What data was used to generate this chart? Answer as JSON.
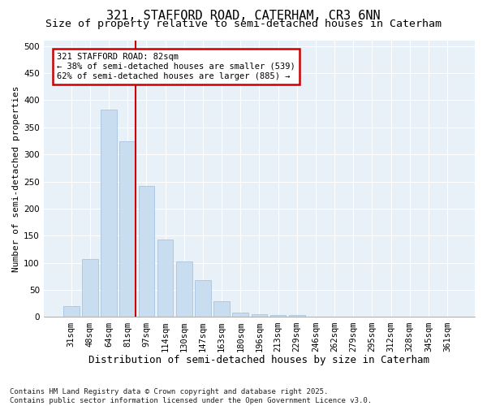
{
  "title1": "321, STAFFORD ROAD, CATERHAM, CR3 6NN",
  "title2": "Size of property relative to semi-detached houses in Caterham",
  "xlabel": "Distribution of semi-detached houses by size in Caterham",
  "ylabel": "Number of semi-detached properties",
  "categories": [
    "31sqm",
    "48sqm",
    "64sqm",
    "81sqm",
    "97sqm",
    "114sqm",
    "130sqm",
    "147sqm",
    "163sqm",
    "180sqm",
    "196sqm",
    "213sqm",
    "229sqm",
    "246sqm",
    "262sqm",
    "279sqm",
    "295sqm",
    "312sqm",
    "328sqm",
    "345sqm",
    "361sqm"
  ],
  "values": [
    20,
    107,
    383,
    325,
    242,
    143,
    102,
    68,
    29,
    8,
    5,
    4,
    4,
    1,
    1,
    0,
    1,
    0,
    0,
    0,
    1
  ],
  "bar_color": "#c8ddf0",
  "bar_edge_color": "#a8c4e0",
  "vline_bin_index": 3,
  "annotation_title": "321 STAFFORD ROAD: 82sqm",
  "annotation_line1": "← 38% of semi-detached houses are smaller (539)",
  "annotation_line2": "62% of semi-detached houses are larger (885) →",
  "vline_color": "#cc0000",
  "annotation_box_edgecolor": "#cc0000",
  "ylim": [
    0,
    510
  ],
  "yticks": [
    0,
    50,
    100,
    150,
    200,
    250,
    300,
    350,
    400,
    450,
    500
  ],
  "bg_color": "#ffffff",
  "plot_bg_color": "#e8f0f8",
  "grid_color": "#ffffff",
  "footer": "Contains HM Land Registry data © Crown copyright and database right 2025.\nContains public sector information licensed under the Open Government Licence v3.0.",
  "title1_fontsize": 11,
  "title2_fontsize": 9.5,
  "xlabel_fontsize": 9,
  "ylabel_fontsize": 8,
  "tick_fontsize": 7.5,
  "annot_fontsize": 7.5,
  "footer_fontsize": 6.5
}
